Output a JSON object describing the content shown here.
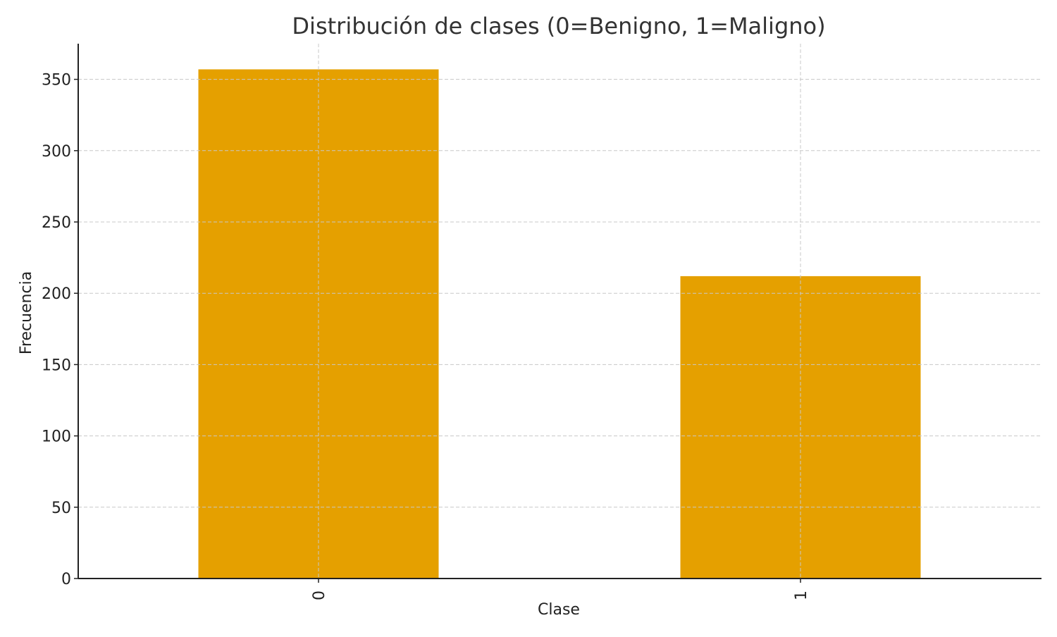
{
  "chart_data": {
    "type": "bar",
    "title": "Distribución de clases (0=Benigno, 1=Maligno)",
    "xlabel": "Clase",
    "ylabel": "Frecuencia",
    "categories": [
      "0",
      "1"
    ],
    "values": [
      357,
      212
    ],
    "ylim": [
      0,
      375
    ],
    "yticks": [
      0,
      50,
      100,
      150,
      200,
      250,
      300,
      350
    ],
    "grid": true,
    "bar_color": "#E5A000",
    "xtick_rotation": "vertical"
  }
}
